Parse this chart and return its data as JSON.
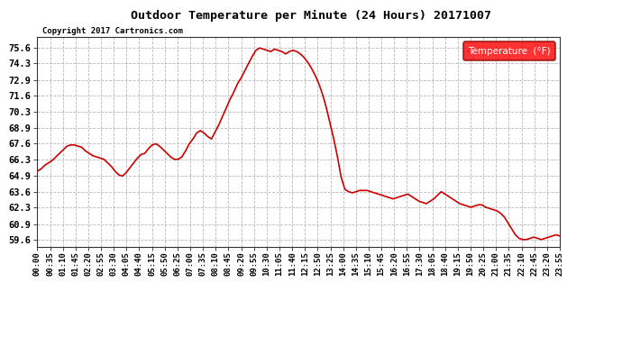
{
  "title": "Outdoor Temperature per Minute (24 Hours) 20171007",
  "copyright_text": "Copyright 2017 Cartronics.com",
  "legend_label": "Temperature  (°F)",
  "line_color": "#cc0000",
  "background_color": "#ffffff",
  "grid_color": "#b0b0b0",
  "yticks": [
    59.6,
    60.9,
    62.3,
    63.6,
    64.9,
    66.3,
    67.6,
    68.9,
    70.3,
    71.6,
    72.9,
    74.3,
    75.6
  ],
  "ylim": [
    59.0,
    76.5
  ],
  "xtick_labels": [
    "00:00",
    "00:35",
    "01:10",
    "01:45",
    "02:20",
    "02:55",
    "03:30",
    "04:05",
    "04:40",
    "05:15",
    "05:50",
    "06:25",
    "07:00",
    "07:35",
    "08:10",
    "08:45",
    "09:20",
    "09:55",
    "10:30",
    "11:05",
    "11:40",
    "12:15",
    "12:50",
    "13:25",
    "14:00",
    "14:35",
    "15:10",
    "15:45",
    "16:20",
    "16:55",
    "17:30",
    "18:05",
    "18:40",
    "19:15",
    "19:50",
    "20:25",
    "21:00",
    "21:35",
    "22:10",
    "22:45",
    "23:20",
    "23:55"
  ],
  "temperature_profile": [
    65.3,
    65.5,
    65.8,
    66.0,
    66.2,
    66.5,
    66.8,
    67.1,
    67.4,
    67.5,
    67.5,
    67.4,
    67.3,
    67.0,
    66.8,
    66.6,
    66.5,
    66.4,
    66.3,
    66.0,
    65.7,
    65.3,
    65.0,
    64.9,
    65.2,
    65.6,
    66.0,
    66.4,
    66.7,
    66.8,
    67.2,
    67.5,
    67.6,
    67.4,
    67.1,
    66.8,
    66.5,
    66.3,
    66.3,
    66.5,
    67.0,
    67.6,
    68.0,
    68.5,
    68.7,
    68.5,
    68.2,
    68.0,
    68.6,
    69.2,
    69.9,
    70.6,
    71.3,
    71.9,
    72.6,
    73.1,
    73.7,
    74.3,
    74.9,
    75.4,
    75.6,
    75.5,
    75.4,
    75.3,
    75.5,
    75.4,
    75.3,
    75.1,
    75.3,
    75.4,
    75.3,
    75.1,
    74.8,
    74.4,
    73.9,
    73.3,
    72.6,
    71.7,
    70.6,
    69.3,
    68.0,
    66.5,
    64.8,
    63.8,
    63.6,
    63.5,
    63.6,
    63.7,
    63.7,
    63.7,
    63.6,
    63.5,
    63.4,
    63.3,
    63.2,
    63.1,
    63.0,
    63.1,
    63.2,
    63.3,
    63.4,
    63.2,
    63.0,
    62.8,
    62.7,
    62.6,
    62.8,
    63.0,
    63.3,
    63.6,
    63.4,
    63.2,
    63.0,
    62.8,
    62.6,
    62.5,
    62.4,
    62.3,
    62.4,
    62.5,
    62.5,
    62.3,
    62.2,
    62.1,
    62.0,
    61.8,
    61.5,
    61.0,
    60.5,
    60.0,
    59.7,
    59.6,
    59.6,
    59.7,
    59.8,
    59.7,
    59.6,
    59.7,
    59.8,
    59.9,
    60.0,
    59.9
  ]
}
